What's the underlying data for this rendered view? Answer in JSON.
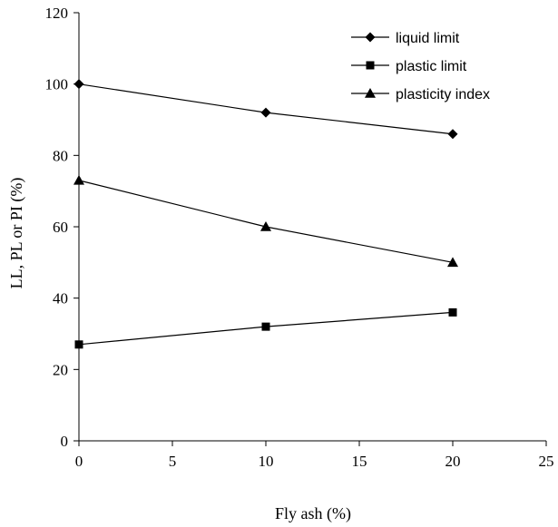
{
  "chart_data": {
    "type": "line",
    "title": "",
    "xlabel": "Fly ash (%)",
    "ylabel": "LL, PL or PI (%)",
    "xlim": [
      0,
      25
    ],
    "ylim": [
      0,
      120
    ],
    "xticks": [
      0,
      5,
      10,
      15,
      20,
      25
    ],
    "yticks": [
      0,
      20,
      40,
      60,
      80,
      100,
      120
    ],
    "grid": false,
    "legend_position": "top-right",
    "x": [
      0,
      10,
      20
    ],
    "series": [
      {
        "name": "liquid limit",
        "marker": "diamond",
        "values": [
          100,
          92,
          86
        ]
      },
      {
        "name": "plastic limit",
        "marker": "square",
        "values": [
          27,
          32,
          36
        ]
      },
      {
        "name": "plasticity index",
        "marker": "triangle",
        "values": [
          73,
          60,
          50
        ]
      }
    ]
  }
}
